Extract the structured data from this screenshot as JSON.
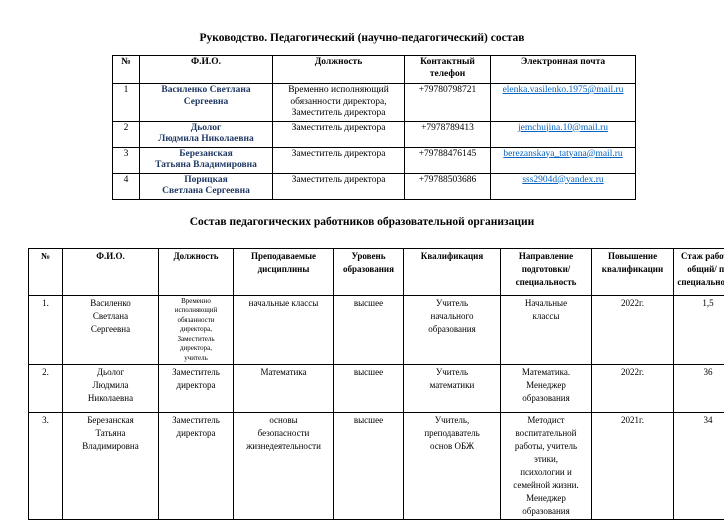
{
  "titles": {
    "leadership": "Руководство. Педагогический (научно-педагогический) состав",
    "staff": "Состав педагогических работников образовательной организации"
  },
  "colors": {
    "name_navy": "#1F3864",
    "link_blue": "#0563C1",
    "border_black": "#000000",
    "background": "#ffffff"
  },
  "table1": {
    "headers": [
      "№",
      "Ф.И.О.",
      "Должность",
      "Контактный\nтелефон",
      "Электронная почта"
    ],
    "rows": [
      {
        "num": "1",
        "name": "Василенко  Светлана\nСергеевна",
        "position": "Временно исполняющий\nобязанности директора,\nЗаместитель директора",
        "phone": "+79780798721",
        "email": "elenka.vasilenko.1975@mail.ru"
      },
      {
        "num": "2",
        "name": "Дьолог\nЛюдмила Николаевна",
        "position": "Заместитель директора",
        "phone": "+7978789413",
        "email": "jemchujina.10@mail.ru"
      },
      {
        "num": "3",
        "name": "Березанская\nТатьяна Владимировна",
        "position": "Заместитель директора",
        "phone": "+79788476145",
        "email": "berezanskaya_tatyana@mail.ru"
      },
      {
        "num": "4",
        "name": "Порицкая\nСветлана Сергеевна",
        "position": "Заместитель директора",
        "phone": "+79788503686",
        "email": "sss2904d@yandex.ru"
      }
    ]
  },
  "table2": {
    "headers": [
      "№",
      "Ф.И.О.",
      "Должность",
      "Преподаваемые\nдисциплины",
      "Уровень\nобразования",
      "Квалификация",
      "Направление\nподготовки/\nспециальность",
      "Повышение\nквалификации",
      "Стаж работы\nобщий/ по\nспециальности"
    ],
    "rows": [
      {
        "num": "1.",
        "name": "Василенко\nСветлана\nСергеевна",
        "position": "Временно\nисполняющий\nобязанности\nдиректора,\nЗаместитель\nдиректора,\nучитель",
        "subjects": "начальные классы",
        "education": "высшее",
        "qualification": "Учитель\nначального\nобразования",
        "specialty": "Начальные\nклассы",
        "training": "2022г.",
        "experience": "1,5"
      },
      {
        "num": "2.",
        "name": "Дьолог\nЛюдмила\nНиколаевна",
        "position": "Заместитель\nдиректора",
        "subjects": "Математика",
        "education": "высшее",
        "qualification": "Учитель\nматематики",
        "specialty": "Математика.\nМенеджер\nобразования",
        "training": "2022г.",
        "experience": "36"
      },
      {
        "num": "3.",
        "name": "Березанская\nТатьяна\nВладимировна",
        "position": "Заместитель\nдиректора",
        "subjects": "основы\nбезопасности\nжизнедеятельности",
        "education": "высшее",
        "qualification": "Учитель,\nпреподаватель\nоснов ОБЖ",
        "specialty": "Методист\nвоспитательной\nработы, учитель\nэтики,\nпсихологии и\nсемейной жизни.\nМенеджер\nобразования",
        "training": "2021г.",
        "experience": "34"
      }
    ]
  }
}
